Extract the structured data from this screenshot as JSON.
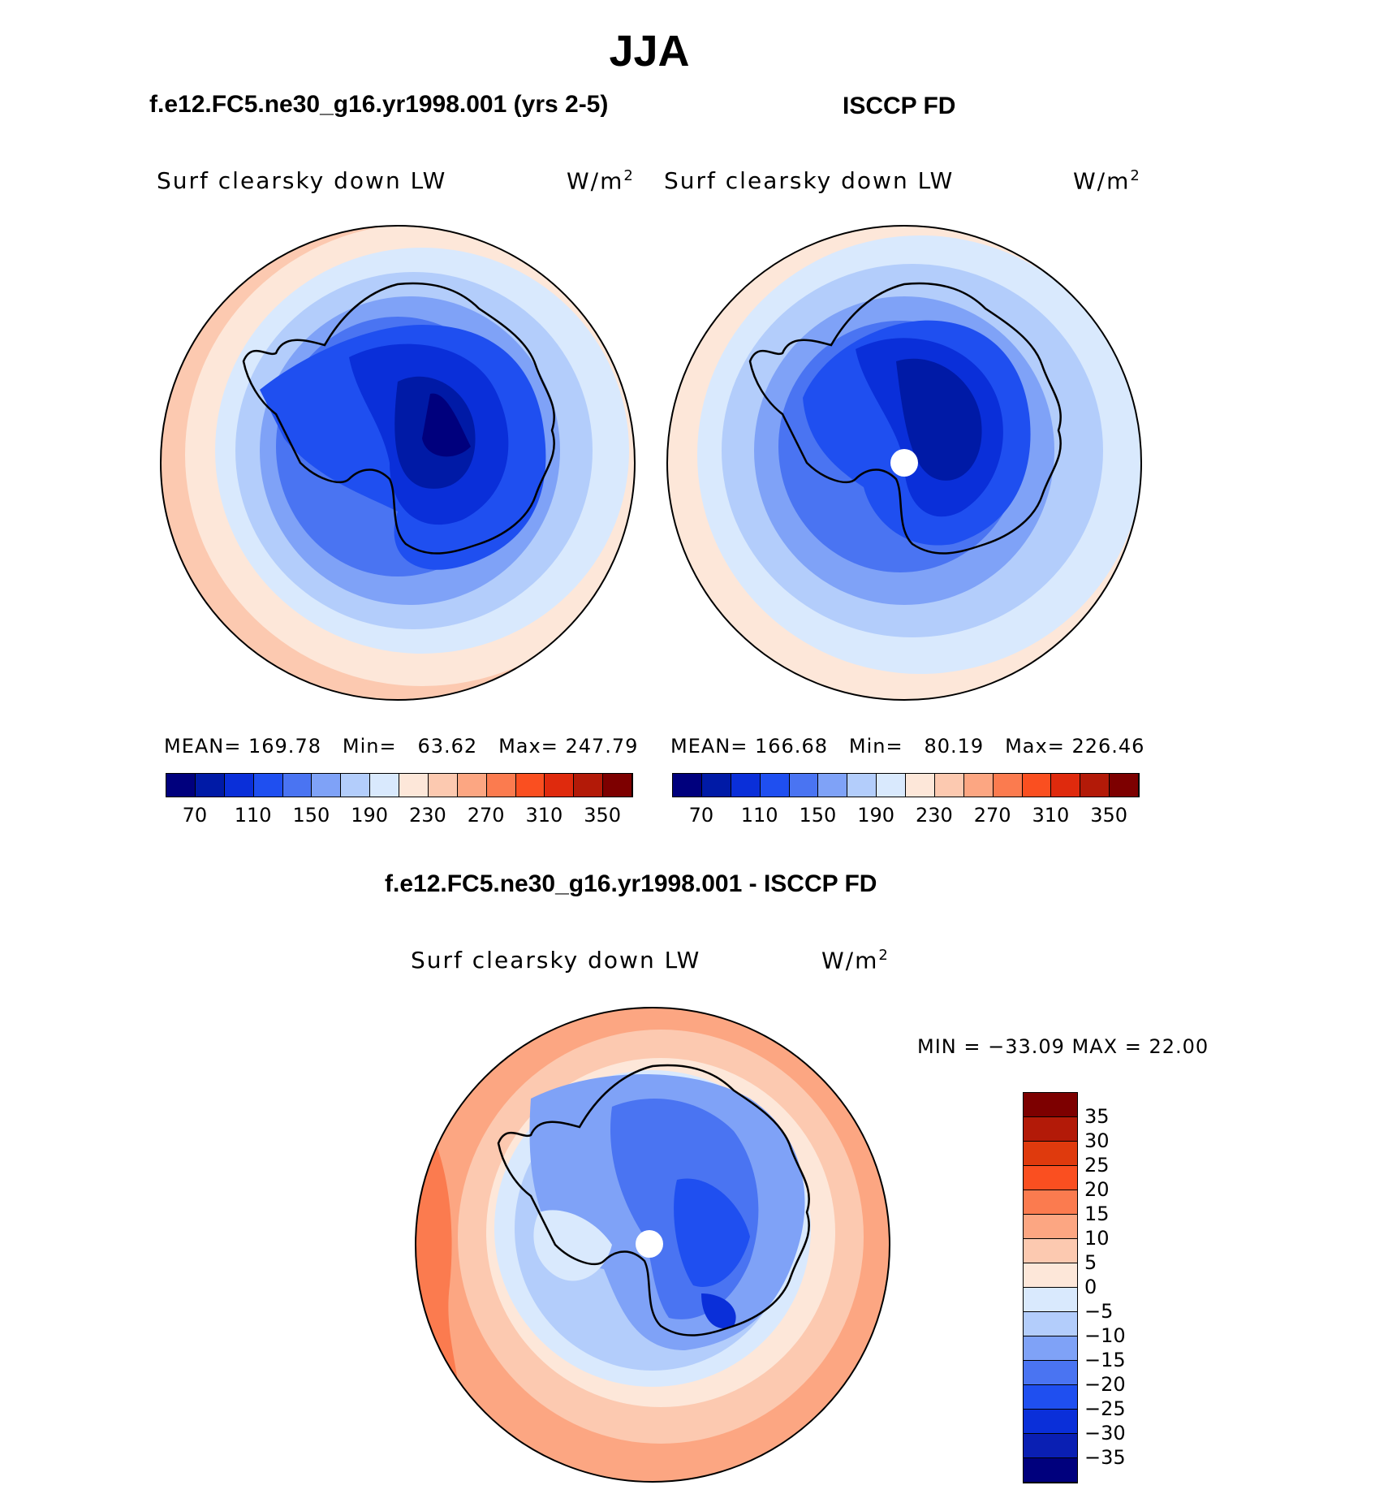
{
  "figure": {
    "title": "JJA",
    "left_panel": {
      "case_title": "f.e12.FC5.ne30_g16.yr1998.001 (yrs 2-5)",
      "variable": "Surf clearsky down LW",
      "units": "W/m",
      "units_exp": "2",
      "stats": {
        "mean_label": "MEAN=",
        "mean": "169.78",
        "min_label": "Min=",
        "min": "63.62",
        "max_label": "Max=",
        "max": "247.79"
      }
    },
    "right_panel": {
      "case_title": "ISCCP FD",
      "variable": "Surf clearsky down LW",
      "units": "W/m",
      "units_exp": "2",
      "stats": {
        "mean_label": "MEAN=",
        "mean": "166.68",
        "min_label": "Min=",
        "min": "80.19",
        "max_label": "Max=",
        "max": "226.46"
      }
    },
    "diff_panel": {
      "case_title": "f.e12.FC5.ne30_g16.yr1998.001 - ISCCP FD",
      "variable": "Surf clearsky down LW",
      "units": "W/m",
      "units_exp": "2",
      "minmax": "MIN = −33.09 MAX =  22.00"
    },
    "horizontal_colorbar": {
      "colors": [
        "#00007d",
        "#001aa6",
        "#0a2fd9",
        "#1f4ff0",
        "#4a74f2",
        "#7fa2f7",
        "#b3cdfb",
        "#d9e9fd",
        "#fde7d9",
        "#fcc9b0",
        "#fca682",
        "#fb7b4f",
        "#fa4f20",
        "#df2a0d",
        "#b31a08",
        "#7d0000"
      ],
      "tick_labels": [
        "70",
        "110",
        "150",
        "190",
        "230",
        "270",
        "310",
        "350"
      ]
    },
    "vertical_colorbar": {
      "colors": [
        "#00007d",
        "#0a1fb3",
        "#0a2fd9",
        "#1f4ff0",
        "#4a74f2",
        "#7fa2f7",
        "#b3cdfb",
        "#d9e9fd",
        "#fde7d9",
        "#fcc9b0",
        "#fca682",
        "#fb7b4f",
        "#fa4f20",
        "#df3a0d",
        "#b31a08",
        "#7d0000"
      ],
      "tick_labels": [
        "35",
        "30",
        "25",
        "20",
        "15",
        "10",
        "5",
        "0",
        "−5",
        "−10",
        "−15",
        "−20",
        "−25",
        "−30",
        "−35"
      ]
    }
  }
}
